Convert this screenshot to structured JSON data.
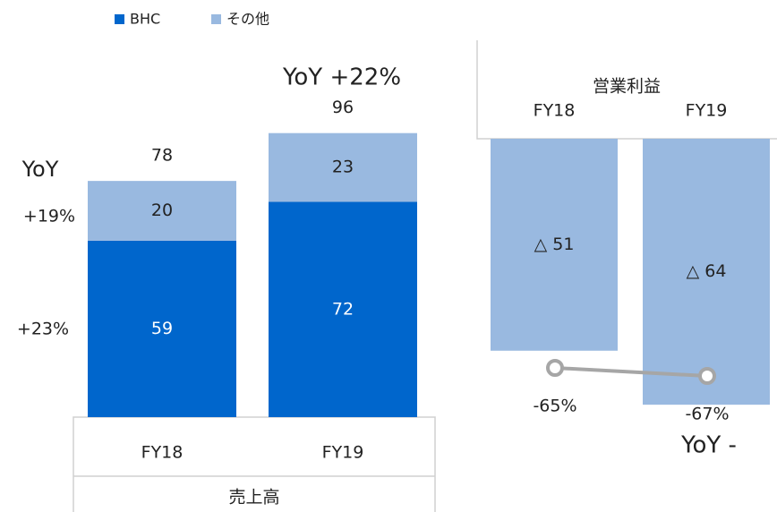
{
  "chart_data": [
    {
      "type": "stacked_bar",
      "categories": [
        "FY18",
        "FY19"
      ],
      "series": [
        {
          "name": "BHC",
          "color": "#0066cc",
          "values": [
            59,
            72
          ]
        },
        {
          "name": "その他",
          "color": "#99b9e0",
          "values": [
            20,
            23
          ]
        }
      ],
      "totals": [
        78,
        96
      ],
      "ylim": [
        0,
        100
      ],
      "x_label": "売上高",
      "annotations": [
        "YoY",
        "+19%",
        "+23%",
        "YoY +22%"
      ]
    },
    {
      "type": "negative_bar",
      "title": "営業利益",
      "categories": [
        "FY18",
        "FY19"
      ],
      "values": [
        -51,
        -64
      ],
      "value_labels": [
        "△ 51",
        "△ 64"
      ],
      "color": "#99b9e0",
      "ylim": [
        -70,
        0
      ],
      "series": [
        {
          "color": "#a6a6a6",
          "axis": "y2",
          "values": [
            -65,
            -67
          ],
          "value_labels": [
            "-65%",
            "-67%"
          ]
        }
      ],
      "y2lim": [
        -70,
        -60
      ],
      "annotations": [
        "YoY -"
      ]
    }
  ]
}
